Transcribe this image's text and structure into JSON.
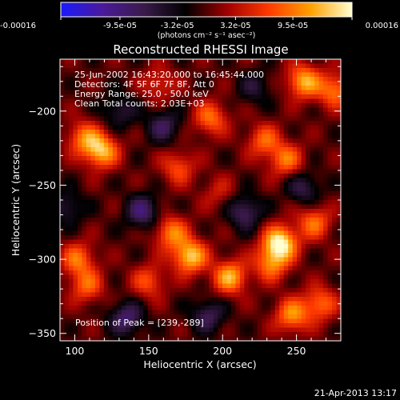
{
  "colorbar": {
    "tick_labels": [
      "-0.00016",
      "-9.5e-05",
      "-3.2e-05",
      "3.2e-05",
      "9.5e-05",
      "0.00016"
    ],
    "tick_values": [
      -0.00016,
      -9.5e-05,
      -3.2e-05,
      3.2e-05,
      9.5e-05,
      0.00016
    ],
    "range": [
      -0.00016,
      0.00016
    ],
    "unit_label": "(photons cm⁻² s⁻¹ asec⁻²)",
    "colors": [
      "#1a1aff",
      "#4a1a9a",
      "#3a1a4a",
      "#000000",
      "#a00000",
      "#ff3a00",
      "#ffa000",
      "#ffffd0"
    ]
  },
  "chart_data": {
    "type": "heatmap",
    "title": "Reconstructed RHESSI Image",
    "xlabel": "Heliocentric X (arcsec)",
    "ylabel": "Heliocentric Y (arcsec)",
    "xlim": [
      90,
      280
    ],
    "ylim": [
      -355,
      -165
    ],
    "x_ticks": [
      100,
      150,
      200,
      250
    ],
    "y_ticks": [
      -200,
      -250,
      -300,
      -350
    ],
    "x_tick_labels": [
      "100",
      "150",
      "200",
      "250"
    ],
    "y_tick_labels": [
      "−200",
      "−250",
      "−300",
      "−350"
    ],
    "annotations": [
      "25-Jun-2002 16:43:20.000 to 16:45:44.000",
      "Detectors: 4F 5F 6F 7F 8F, Att 0",
      "Energy Range: 25.0 - 50.0 keV",
      "Clean    Total counts: 2.03E+03"
    ],
    "peak_label": "Position of Peak = [239,-289]",
    "peak": [
      239,
      -289
    ],
    "sources": [
      {
        "x": 239,
        "y": -289,
        "amp": 1.0
      },
      {
        "x": 233,
        "y": -303,
        "amp": 0.6
      },
      {
        "x": 262,
        "y": -275,
        "amp": 0.55
      },
      {
        "x": 178,
        "y": -298,
        "amp": 0.85
      },
      {
        "x": 165,
        "y": -282,
        "amp": 0.6
      },
      {
        "x": 205,
        "y": -312,
        "amp": 0.75
      },
      {
        "x": 150,
        "y": -315,
        "amp": 0.45
      },
      {
        "x": 118,
        "y": -227,
        "amp": 0.8
      },
      {
        "x": 106,
        "y": -218,
        "amp": 0.55
      },
      {
        "x": 102,
        "y": -300,
        "amp": 0.55
      },
      {
        "x": 108,
        "y": -318,
        "amp": 0.5
      },
      {
        "x": 192,
        "y": -205,
        "amp": 0.55
      },
      {
        "x": 170,
        "y": -238,
        "amp": 0.45
      },
      {
        "x": 228,
        "y": -220,
        "amp": 0.5
      },
      {
        "x": 243,
        "y": -233,
        "amp": 0.55
      },
      {
        "x": 255,
        "y": -180,
        "amp": 0.75
      },
      {
        "x": 276,
        "y": -186,
        "amp": 0.6
      },
      {
        "x": 247,
        "y": -338,
        "amp": 0.65
      },
      {
        "x": 266,
        "y": -330,
        "amp": 0.55
      },
      {
        "x": 157,
        "y": -182,
        "amp": 0.35
      },
      {
        "x": 197,
        "y": -255,
        "amp": 0.25
      },
      {
        "x": 146,
        "y": -268,
        "amp": -0.55
      },
      {
        "x": 160,
        "y": -210,
        "amp": -0.45
      },
      {
        "x": 215,
        "y": -268,
        "amp": -0.5
      },
      {
        "x": 135,
        "y": -340,
        "amp": -0.55
      },
      {
        "x": 190,
        "y": -338,
        "amp": -0.45
      },
      {
        "x": 255,
        "y": -252,
        "amp": -0.4
      },
      {
        "x": 130,
        "y": -200,
        "amp": -0.35
      },
      {
        "x": 222,
        "y": -184,
        "amp": -0.3
      },
      {
        "x": 95,
        "y": -265,
        "amp": -0.35
      }
    ]
  },
  "footer": {
    "date": "21-Apr-2013 13:17"
  }
}
